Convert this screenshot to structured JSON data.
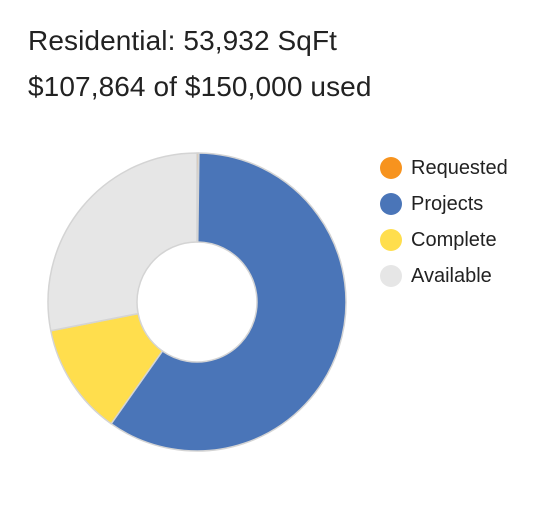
{
  "header": {
    "category": "Residential",
    "area": "53,932 SqFt",
    "used": "$107,864",
    "budget": "$150,000",
    "used_suffix": "used"
  },
  "chart_data": {
    "type": "pie",
    "subtype": "donut",
    "legend_position": "right",
    "unit": "$",
    "total": 150000,
    "series": [
      {
        "name": "Requested",
        "value": 300,
        "color": "#F7931E"
      },
      {
        "name": "Projects",
        "value": 89364,
        "color": "#4A75B8"
      },
      {
        "name": "Complete",
        "value": 18200,
        "color": "#FFDE4D"
      },
      {
        "name": "Available",
        "value": 42136,
        "color": "#E6E6E6"
      }
    ]
  }
}
